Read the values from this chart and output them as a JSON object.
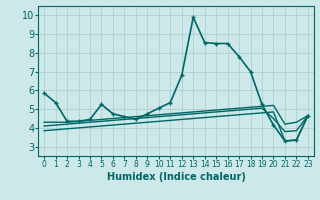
{
  "xlabel": "Humidex (Indice chaleur)",
  "bg_color": "#cce8e8",
  "grid_color": "#aacccc",
  "line_color": "#006666",
  "xlim": [
    -0.5,
    23.5
  ],
  "ylim": [
    2.5,
    10.5
  ],
  "xticks": [
    0,
    1,
    2,
    3,
    4,
    5,
    6,
    7,
    8,
    9,
    10,
    11,
    12,
    13,
    14,
    15,
    16,
    17,
    18,
    19,
    20,
    21,
    22,
    23
  ],
  "yticks": [
    3,
    4,
    5,
    6,
    7,
    8,
    9,
    10
  ],
  "series": [
    [
      5.85,
      5.35,
      4.35,
      4.35,
      4.45,
      5.25,
      4.75,
      4.6,
      4.45,
      4.75,
      5.05,
      5.35,
      6.8,
      9.9,
      8.55,
      8.5,
      8.5,
      7.8,
      7.0,
      5.25,
      4.15,
      3.3,
      3.35,
      4.65
    ],
    [
      4.3,
      4.3,
      4.3,
      4.35,
      4.4,
      4.45,
      4.5,
      4.55,
      4.6,
      4.65,
      4.7,
      4.75,
      4.8,
      4.85,
      4.9,
      4.95,
      5.0,
      5.05,
      5.1,
      5.15,
      5.2,
      4.2,
      4.3,
      4.65
    ],
    [
      3.85,
      3.9,
      3.95,
      4.0,
      4.05,
      4.1,
      4.15,
      4.2,
      4.25,
      4.3,
      4.35,
      4.4,
      4.45,
      4.5,
      4.55,
      4.6,
      4.65,
      4.7,
      4.75,
      4.8,
      4.85,
      3.3,
      3.35,
      4.65
    ],
    [
      4.1,
      4.15,
      4.2,
      4.25,
      4.3,
      4.35,
      4.4,
      4.45,
      4.5,
      4.55,
      4.6,
      4.65,
      4.7,
      4.75,
      4.8,
      4.85,
      4.9,
      4.95,
      5.0,
      5.05,
      4.5,
      3.8,
      3.85,
      4.65
    ]
  ],
  "markers": [
    true,
    false,
    false,
    false
  ],
  "linewidths": [
    1.2,
    1.0,
    1.0,
    1.0
  ],
  "xlabel_fontsize": 7,
  "tick_fontsize_x": 5.5,
  "tick_fontsize_y": 7
}
